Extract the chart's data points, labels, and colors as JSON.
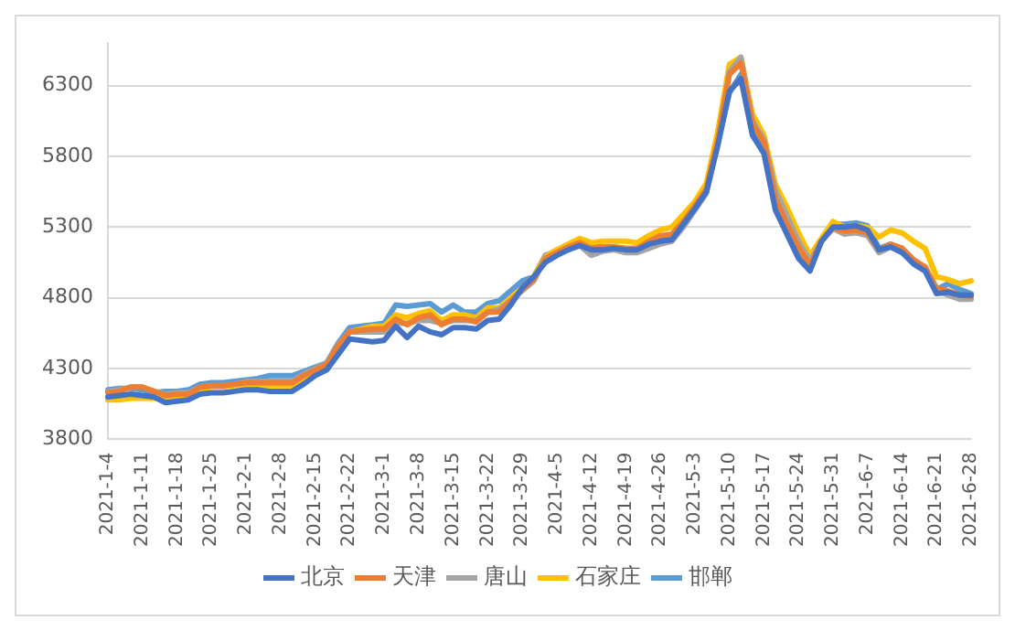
{
  "chart_data": {
    "type": "line",
    "categories": [
      "2021-1-4",
      null,
      null,
      "2021-1-11",
      null,
      null,
      "2021-1-18",
      null,
      null,
      "2021-1-25",
      null,
      null,
      "2021-2-1",
      null,
      null,
      "2021-2-8",
      null,
      null,
      "2021-2-15",
      null,
      null,
      "2021-2-22",
      null,
      null,
      "2021-3-1",
      null,
      null,
      "2021-3-8",
      null,
      null,
      "2021-3-15",
      null,
      null,
      "2021-3-22",
      null,
      null,
      "2021-3-29",
      null,
      null,
      "2021-4-5",
      null,
      null,
      "2021-4-12",
      null,
      null,
      "2021-4-19",
      null,
      null,
      "2021-4-26",
      null,
      null,
      "2021-5-3",
      null,
      null,
      "2021-5-10",
      null,
      null,
      "2021-5-17",
      null,
      null,
      "2021-5-24",
      null,
      null,
      "2021-5-31",
      null,
      null,
      "2021-6-7",
      null,
      null,
      "2021-6-14",
      null,
      null,
      "2021-6-21",
      null,
      null,
      "2021-6-28"
    ],
    "series": [
      {
        "name": "北京",
        "color": "#4472c4",
        "values": [
          4100,
          4110,
          4120,
          4110,
          4100,
          4060,
          4070,
          4080,
          4120,
          4130,
          4130,
          4140,
          4150,
          4150,
          4140,
          4140,
          4140,
          4190,
          4250,
          4290,
          4400,
          4510,
          4500,
          4490,
          4500,
          4600,
          4520,
          4600,
          4560,
          4540,
          4590,
          4590,
          4580,
          4640,
          4650,
          4750,
          4870,
          4950,
          5050,
          5100,
          5140,
          5170,
          5140,
          5140,
          5150,
          5140,
          5140,
          5180,
          5200,
          5210,
          5320,
          5430,
          5550,
          5880,
          6260,
          6350,
          5950,
          5820,
          5420,
          5250,
          5080,
          4990,
          5200,
          5300,
          5300,
          5310,
          5280,
          5140,
          5160,
          5120,
          5040,
          4990,
          4830,
          4840,
          4820,
          4820
        ]
      },
      {
        "name": "天津",
        "color": "#ed7d31",
        "values": [
          4130,
          4140,
          4170,
          4170,
          4140,
          4110,
          4120,
          4120,
          4170,
          4180,
          4180,
          4190,
          4200,
          4200,
          4200,
          4200,
          4200,
          4250,
          4290,
          4330,
          4460,
          4560,
          4570,
          4580,
          4580,
          4650,
          4610,
          4660,
          4680,
          4610,
          4650,
          4650,
          4630,
          4700,
          4700,
          4780,
          4860,
          4930,
          5080,
          5120,
          5160,
          5190,
          5150,
          5160,
          5160,
          5150,
          5150,
          5200,
          5240,
          5250,
          5340,
          5450,
          5570,
          5920,
          6380,
          6460,
          6030,
          5900,
          5500,
          5320,
          5160,
          5030,
          5200,
          5300,
          5270,
          5280,
          5260,
          5140,
          5180,
          5150,
          5070,
          5020,
          4870,
          4850,
          4820,
          4810
        ]
      },
      {
        "name": "唐山",
        "color": "#a5a5a5",
        "values": [
          4140,
          4150,
          4170,
          4170,
          4140,
          4120,
          4130,
          4130,
          4170,
          4180,
          4180,
          4190,
          4210,
          4210,
          4210,
          4210,
          4210,
          4260,
          4300,
          4340,
          4470,
          4560,
          4560,
          4560,
          4560,
          4620,
          4620,
          4640,
          4640,
          4620,
          4640,
          4640,
          4640,
          4700,
          4720,
          4780,
          4850,
          4920,
          5080,
          5110,
          5140,
          5170,
          5100,
          5130,
          5140,
          5120,
          5120,
          5150,
          5180,
          5200,
          5300,
          5420,
          5540,
          5900,
          6400,
          6500,
          6050,
          5920,
          5560,
          5380,
          5200,
          5060,
          5200,
          5290,
          5250,
          5260,
          5240,
          5120,
          5160,
          5150,
          5060,
          5010,
          4850,
          4820,
          4790,
          4790
        ]
      },
      {
        "name": "石家庄",
        "color": "#ffc000",
        "values": [
          4080,
          4080,
          4090,
          4090,
          4090,
          4090,
          4100,
          4100,
          4150,
          4170,
          4170,
          4180,
          4180,
          4180,
          4180,
          4180,
          4180,
          4230,
          4280,
          4330,
          4450,
          4560,
          4580,
          4600,
          4600,
          4680,
          4660,
          4690,
          4710,
          4640,
          4680,
          4680,
          4660,
          4730,
          4730,
          4800,
          4870,
          4950,
          5090,
          5140,
          5180,
          5220,
          5190,
          5200,
          5200,
          5200,
          5190,
          5240,
          5280,
          5300,
          5390,
          5480,
          5610,
          5980,
          6450,
          6500,
          6100,
          5950,
          5600,
          5440,
          5260,
          5100,
          5220,
          5340,
          5300,
          5310,
          5300,
          5230,
          5280,
          5260,
          5200,
          5150,
          4950,
          4930,
          4900,
          4920
        ]
      },
      {
        "name": "邯郸",
        "color": "#5b9bd5",
        "values": [
          4150,
          4160,
          4160,
          4150,
          4130,
          4140,
          4140,
          4150,
          4190,
          4200,
          4200,
          4210,
          4220,
          4230,
          4250,
          4250,
          4250,
          4280,
          4310,
          4340,
          4480,
          4590,
          4600,
          4610,
          4620,
          4750,
          4740,
          4750,
          4760,
          4700,
          4750,
          4700,
          4700,
          4760,
          4780,
          4850,
          4920,
          4950,
          5100,
          5130,
          5160,
          5170,
          5160,
          5160,
          5150,
          5140,
          5150,
          5200,
          5230,
          5230,
          5330,
          5440,
          5560,
          5900,
          6250,
          6380,
          5980,
          5870,
          5450,
          5280,
          5100,
          5100,
          5200,
          5320,
          5320,
          5330,
          5310,
          5150,
          5180,
          5150,
          5060,
          5010,
          4860,
          4900,
          4860,
          4830
        ]
      }
    ],
    "ylim": [
      3800,
      6600
    ],
    "yticks": [
      3800,
      4300,
      4800,
      5300,
      5800,
      6300
    ],
    "grid": "y",
    "legend": "bottom",
    "marker": "none",
    "line_style": "solid"
  }
}
